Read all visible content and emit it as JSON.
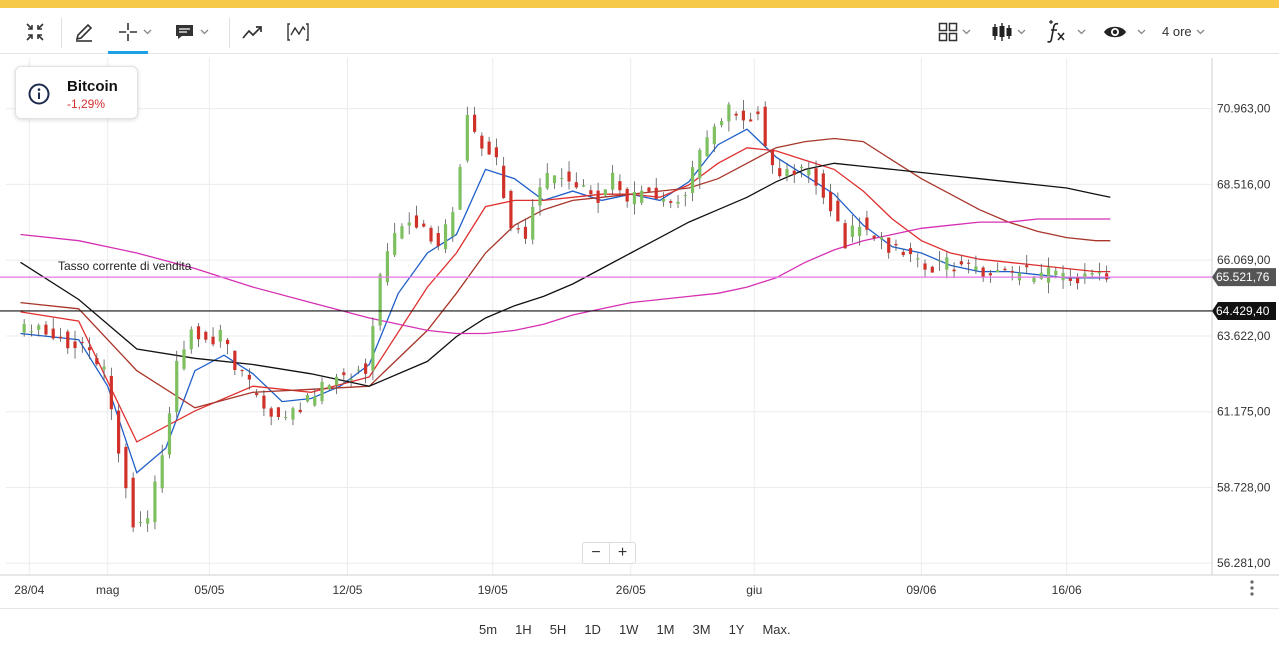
{
  "toolbar": {
    "interval_label": "4 ore",
    "icons": [
      "collapse-icon",
      "pencil-icon",
      "crosshair-icon",
      "comment-icon",
      "trend-icon",
      "indicator-icon",
      "layout-icon",
      "candlestick-icon",
      "function-icon",
      "eye-icon"
    ]
  },
  "info": {
    "title": "Bitcoin",
    "change": "-1,29%",
    "change_color": "#d32f2f"
  },
  "periods": [
    "5m",
    "1H",
    "5H",
    "1D",
    "1W",
    "1M",
    "3M",
    "1Y",
    "Max."
  ],
  "chart_data": {
    "type": "line",
    "instrument": "Bitcoin",
    "x_ticks": [
      "28/04",
      "mag",
      "05/05",
      "12/05",
      "19/05",
      "26/05",
      "giu",
      "09/06",
      "16/06"
    ],
    "y_ticks": [
      "70.963,00",
      "68.516,00",
      "66.069,00",
      "63.622,00",
      "61.175,00",
      "58.728,00",
      "56.281,00"
    ],
    "y_tick_values": [
      70963,
      68516,
      66069,
      63622,
      61175,
      58728,
      56281
    ],
    "ylim": [
      55900,
      72600
    ],
    "x_index_range": [
      0,
      56
    ],
    "x_tick_index": [
      0.6,
      6,
      13,
      22.5,
      32.5,
      42,
      50.5,
      62,
      72
    ],
    "grid": true,
    "annotation": "Tasso corrente di vendita",
    "current_rate": {
      "value": 65521.76,
      "label": "65.521,76",
      "color": "#e478e4"
    },
    "horizontal_line": {
      "value": 64429.4,
      "label": "64.429,40",
      "color": "#111111"
    },
    "price_series": {
      "name": "",
      "x": [
        0,
        2,
        4,
        6,
        7,
        8,
        9,
        10,
        11,
        12,
        13,
        14,
        15,
        16,
        18,
        20,
        22,
        24,
        25,
        26,
        27,
        28,
        29,
        30,
        31,
        32,
        33,
        34,
        35,
        36,
        37,
        38,
        39,
        40,
        41,
        42,
        43,
        44,
        45,
        46,
        47,
        48,
        49,
        50,
        51,
        52,
        53,
        54,
        55,
        56,
        57,
        58,
        59,
        60,
        61,
        62,
        63,
        64,
        65,
        66,
        67,
        68,
        69,
        70,
        71,
        72,
        73,
        74,
        75
      ],
      "values": [
        63900,
        63700,
        63400,
        62500,
        60000,
        57600,
        57800,
        59800,
        62800,
        64000,
        63500,
        63700,
        62700,
        62000,
        60800,
        61600,
        62200,
        62600,
        65600,
        66800,
        67300,
        67100,
        66400,
        67700,
        70700,
        69800,
        69300,
        67200,
        66800,
        68500,
        68900,
        68600,
        68300,
        68100,
        68700,
        67800,
        68500,
        68200,
        68000,
        68300,
        69500,
        70400,
        70900,
        70500,
        70800,
        68900,
        68800,
        68900,
        68700,
        67900,
        66700,
        67300,
        66800,
        66400,
        66300,
        66100,
        65900,
        66000,
        65800,
        65900,
        65500,
        65600,
        65700,
        65500,
        65600,
        65500,
        65400,
        65600,
        65520
      ]
    },
    "moving_averages": [
      {
        "name": "",
        "color": "#1f5fc9",
        "x": [
          0,
          4,
          6,
          8,
          10,
          12,
          14,
          16,
          18,
          20,
          22,
          24,
          26,
          28,
          30,
          32,
          34,
          36,
          38,
          40,
          42,
          44,
          46,
          48,
          50,
          52,
          54,
          56,
          58,
          60,
          62,
          64,
          66,
          68,
          70,
          72,
          74,
          75
        ],
        "values": [
          63700,
          63500,
          62000,
          59200,
          60000,
          62500,
          63000,
          62400,
          61500,
          61600,
          62000,
          62700,
          65000,
          66300,
          66900,
          69000,
          68700,
          68000,
          68300,
          68000,
          68200,
          68000,
          68600,
          69800,
          70300,
          69400,
          68800,
          68200,
          67200,
          66500,
          66300,
          65900,
          65700,
          65700,
          65600,
          65500,
          65500,
          65500
        ]
      },
      {
        "name": "",
        "color": "#e03030",
        "x": [
          0,
          4,
          8,
          12,
          16,
          20,
          24,
          28,
          30,
          32,
          34,
          36,
          38,
          40,
          42,
          44,
          46,
          48,
          50,
          52,
          54,
          56,
          58,
          60,
          62,
          64,
          66,
          68,
          70,
          72,
          74,
          75
        ],
        "values": [
          64400,
          64100,
          60200,
          61200,
          62000,
          61800,
          62300,
          65200,
          66300,
          67800,
          68000,
          68000,
          68100,
          68200,
          68200,
          68100,
          68500,
          69200,
          69700,
          69600,
          69300,
          69000,
          68300,
          67400,
          66700,
          66300,
          66100,
          66000,
          65900,
          65800,
          65700,
          65700
        ]
      },
      {
        "name": "",
        "color": "#a8362a",
        "x": [
          0,
          4,
          8,
          12,
          16,
          20,
          24,
          28,
          30,
          32,
          34,
          36,
          38,
          40,
          42,
          44,
          46,
          48,
          50,
          52,
          54,
          56,
          58,
          60,
          62,
          64,
          66,
          68,
          70,
          72,
          74,
          75
        ],
        "values": [
          64700,
          64500,
          62500,
          61300,
          61800,
          61900,
          62000,
          63800,
          65000,
          66300,
          67200,
          67700,
          68000,
          68100,
          68200,
          68300,
          68400,
          68700,
          69200,
          69700,
          69900,
          70000,
          69900,
          69300,
          68700,
          68200,
          67700,
          67300,
          67000,
          66800,
          66700,
          66700
        ]
      },
      {
        "name": "",
        "color": "#111111",
        "x": [
          0,
          4,
          8,
          12,
          16,
          20,
          24,
          28,
          30,
          32,
          34,
          36,
          38,
          40,
          42,
          44,
          46,
          48,
          50,
          52,
          54,
          56,
          58,
          60,
          62,
          64,
          66,
          68,
          70,
          72,
          74,
          75
        ],
        "values": [
          66000,
          64800,
          63200,
          62900,
          62700,
          62400,
          62000,
          62800,
          63600,
          64200,
          64600,
          64900,
          65300,
          65800,
          66300,
          66800,
          67300,
          67700,
          68100,
          68600,
          69000,
          69200,
          69100,
          69000,
          68900,
          68800,
          68700,
          68600,
          68500,
          68400,
          68200,
          68100
        ]
      },
      {
        "name": "",
        "color": "#d630b4",
        "x": [
          0,
          4,
          8,
          12,
          16,
          20,
          24,
          28,
          30,
          32,
          34,
          36,
          38,
          40,
          42,
          44,
          46,
          48,
          50,
          52,
          54,
          56,
          58,
          60,
          62,
          64,
          66,
          68,
          70,
          72,
          74,
          75
        ],
        "values": [
          66900,
          66700,
          66300,
          65800,
          65200,
          64700,
          64200,
          63800,
          63700,
          63700,
          63800,
          64000,
          64300,
          64500,
          64700,
          64800,
          64900,
          65000,
          65200,
          65500,
          66000,
          66400,
          66700,
          66900,
          67100,
          67200,
          67300,
          67300,
          67400,
          67400,
          67400,
          67400
        ]
      }
    ]
  }
}
